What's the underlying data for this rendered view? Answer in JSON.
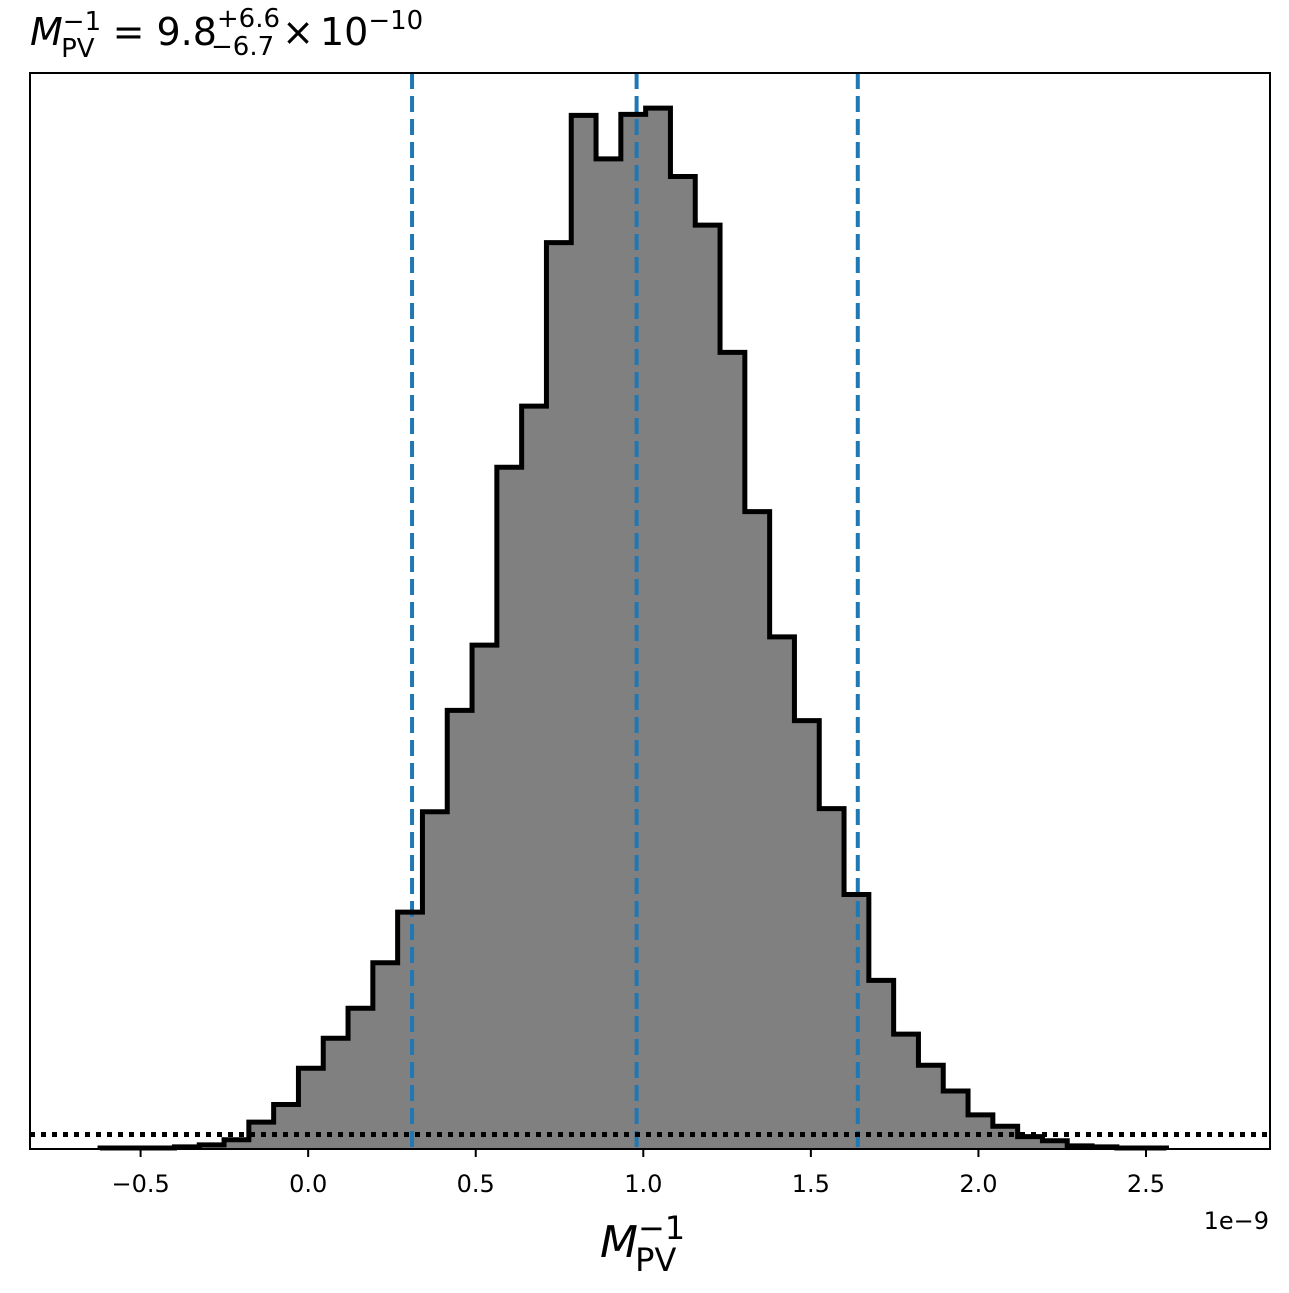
{
  "chart_data": {
    "type": "histogram",
    "title": {
      "symbol": "M",
      "symbol_sub": "PV",
      "symbol_sup": "−1",
      "equals": "=",
      "value": "9.8",
      "err_plus": "+6.6",
      "err_minus": "−6.7",
      "times": "×",
      "base": "10",
      "exponent": "−10"
    },
    "xlabel": {
      "symbol": "M",
      "sub": "PV",
      "sup": "−1"
    },
    "x_offset_text": "1e−9",
    "xlim": [
      -0.83,
      2.87
    ],
    "ylim": [
      0,
      1.04
    ],
    "x_ticks": [
      {
        "value": -0.5,
        "label": "−0.5"
      },
      {
        "value": 0.0,
        "label": "0.0"
      },
      {
        "value": 0.5,
        "label": "0.5"
      },
      {
        "value": 1.0,
        "label": "1.0"
      },
      {
        "value": 1.5,
        "label": "1.5"
      },
      {
        "value": 2.0,
        "label": "2.0"
      },
      {
        "value": 2.5,
        "label": "2.5"
      }
    ],
    "bin_edges": [
      -0.621,
      -0.547,
      -0.473,
      -0.399,
      -0.325,
      -0.251,
      -0.177,
      -0.103,
      -0.029,
      0.045,
      0.119,
      0.193,
      0.267,
      0.341,
      0.415,
      0.489,
      0.563,
      0.637,
      0.711,
      0.785,
      0.859,
      0.933,
      1.007,
      1.081,
      1.155,
      1.229,
      1.303,
      1.377,
      1.451,
      1.525,
      1.599,
      1.673,
      1.747,
      1.821,
      1.895,
      1.969,
      2.043,
      2.117,
      2.191,
      2.265,
      2.339,
      2.413,
      2.487,
      2.561
    ],
    "counts": [
      0.001,
      0.001,
      0.001,
      0.002,
      0.004,
      0.009,
      0.026,
      0.043,
      0.078,
      0.107,
      0.136,
      0.18,
      0.229,
      0.326,
      0.424,
      0.487,
      0.659,
      0.718,
      0.876,
      0.999,
      0.957,
      1.0,
      1.006,
      0.94,
      0.893,
      0.77,
      0.616,
      0.495,
      0.414,
      0.329,
      0.246,
      0.163,
      0.111,
      0.081,
      0.056,
      0.033,
      0.022,
      0.012,
      0.008,
      0.003,
      0.002,
      0.001,
      0.001
    ],
    "fill_color": "#808080",
    "edge_color": "#000000",
    "quantile_lines": {
      "values": [
        0.31,
        0.98,
        1.64
      ],
      "color": "#1f77b4",
      "style": "dashed"
    },
    "reference_line": {
      "y": 0.014,
      "color": "#000000",
      "style": "dotted"
    },
    "grid": false
  }
}
